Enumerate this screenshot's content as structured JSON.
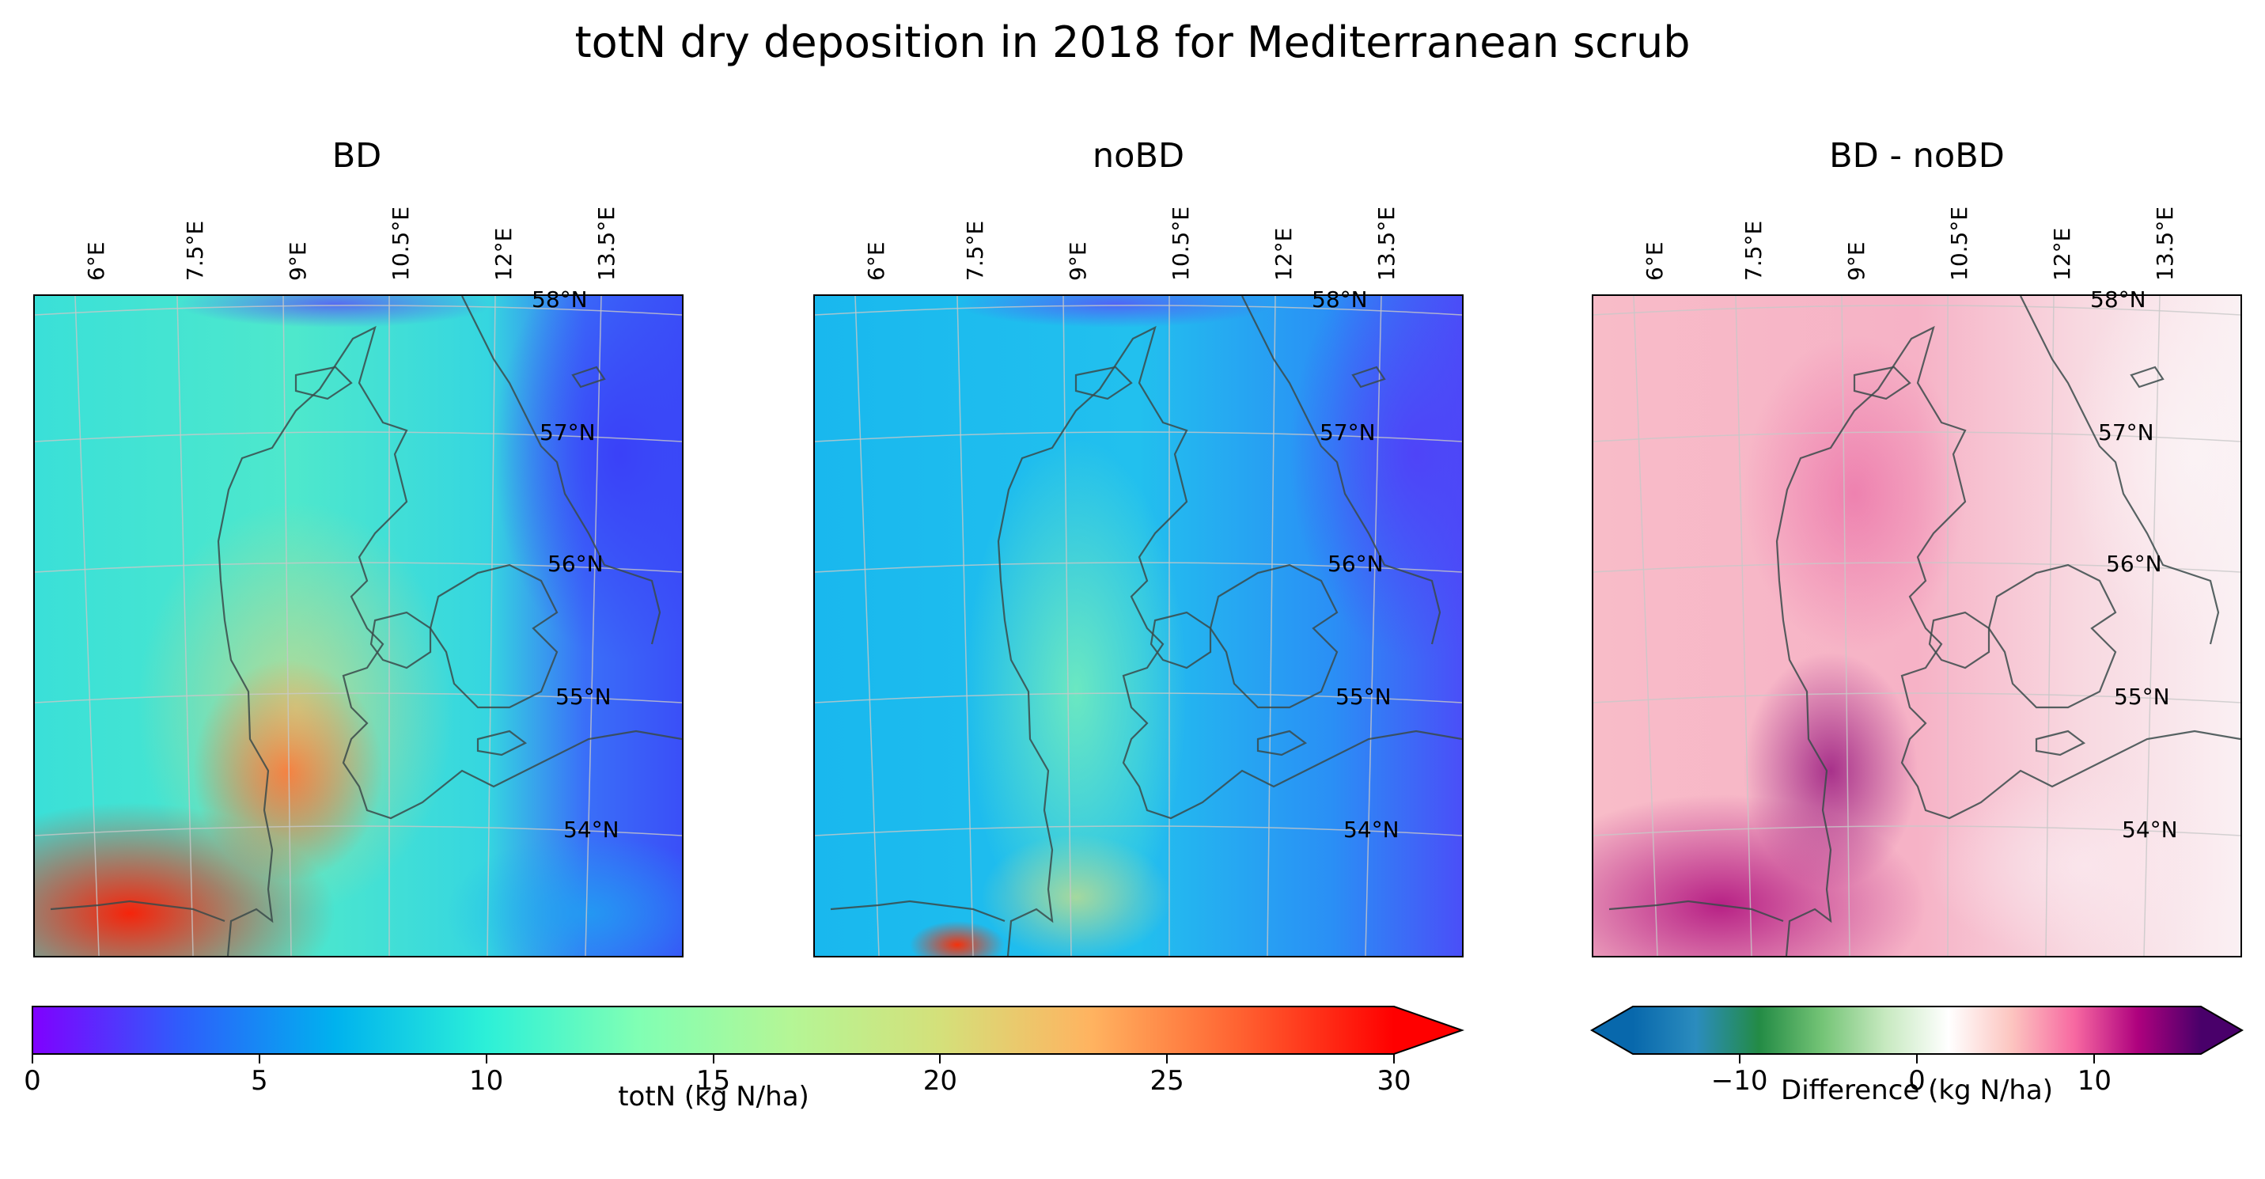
{
  "figure": {
    "title": "totN dry deposition in 2018 for Mediterranean scrub"
  },
  "panels": [
    {
      "title": "BD",
      "colormap": "rainbow"
    },
    {
      "title": "noBD",
      "colormap": "rainbow"
    },
    {
      "title": "BD - noBD",
      "colormap": "diverging"
    }
  ],
  "map": {
    "lon_ticks": [
      "6°E",
      "7.5°E",
      "9°E",
      "10.5°E",
      "12°E",
      "13.5°E"
    ],
    "lat_ticks": [
      "58°N",
      "57°N",
      "56°N",
      "55°N",
      "54°N"
    ],
    "extent": {
      "lon": [
        5.5,
        15.0
      ],
      "lat": [
        53.3,
        58.0
      ]
    },
    "coastline_color": "#3a4a4a",
    "gridline_color": "#c8c8c8"
  },
  "colorbar_main": {
    "label": "totN (kg N/ha)",
    "ticks": [
      "0",
      "5",
      "10",
      "15",
      "20",
      "25",
      "30"
    ],
    "range": [
      0,
      30
    ],
    "extend": "max",
    "colors": [
      "#8000ff",
      "#2d5ffb",
      "#00b2ee",
      "#2cf0d8",
      "#80ffb4",
      "#b4f696",
      "#d4e07a",
      "#ffb360",
      "#ff6030",
      "#ff0000"
    ]
  },
  "colorbar_diff": {
    "label": "Difference (kg N/ha)",
    "ticks": [
      "−10",
      "0",
      "10"
    ],
    "range": [
      -16,
      16
    ],
    "extend": "both",
    "colors": [
      "#0868ac",
      "#2b8cbe",
      "#238b45",
      "#74c476",
      "#c7e9c0",
      "#ffffff",
      "#fcc5c0",
      "#f768a1",
      "#ae017e",
      "#49006a"
    ]
  }
}
